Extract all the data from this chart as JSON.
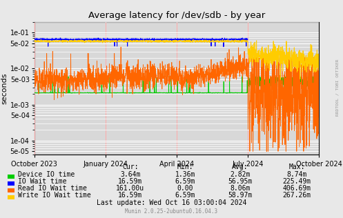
{
  "title": "Average latency for /dev/sdb - by year",
  "ylabel": "seconds",
  "background_color": "#e8e8e8",
  "plot_bg_color": "#d8d8d8",
  "y_ticks_all": [
    5e-05,
    0.0001,
    0.0005,
    0.001,
    0.005,
    0.01,
    0.05,
    0.1
  ],
  "x_tick_labels": [
    "October 2023",
    "January 2024",
    "April 2024",
    "July 2024",
    "October 2024"
  ],
  "x_tick_pos": [
    0.0,
    0.25,
    0.5,
    0.75,
    1.0
  ],
  "legend_entries": [
    {
      "label": "Device IO time",
      "color": "#00cc00"
    },
    {
      "label": "IO Wait time",
      "color": "#0000ff"
    },
    {
      "label": "Read IO Wait time",
      "color": "#ff6600"
    },
    {
      "label": "Write IO Wait time",
      "color": "#ffcc00"
    }
  ],
  "table_headers": [
    "Cur:",
    "Min:",
    "Avg:",
    "Max:"
  ],
  "table_rows": [
    [
      "Device IO time",
      "3.64m",
      "1.36m",
      "2.82m",
      "8.74m"
    ],
    [
      "IO Wait time",
      "16.59m",
      "6.59m",
      "56.95m",
      "225.49m"
    ],
    [
      "Read IO Wait time",
      "161.00u",
      "0.00",
      "8.06m",
      "406.69m"
    ],
    [
      "Write IO Wait time",
      "16.59m",
      "6.59m",
      "58.97m",
      "267.26m"
    ]
  ],
  "last_update": "Last update: Wed Oct 16 03:00:04 2024",
  "munin_version": "Munin 2.0.25-2ubuntu0.16.04.3",
  "rrdtool_label": "RRDTOOL / TOBI OETIKER"
}
